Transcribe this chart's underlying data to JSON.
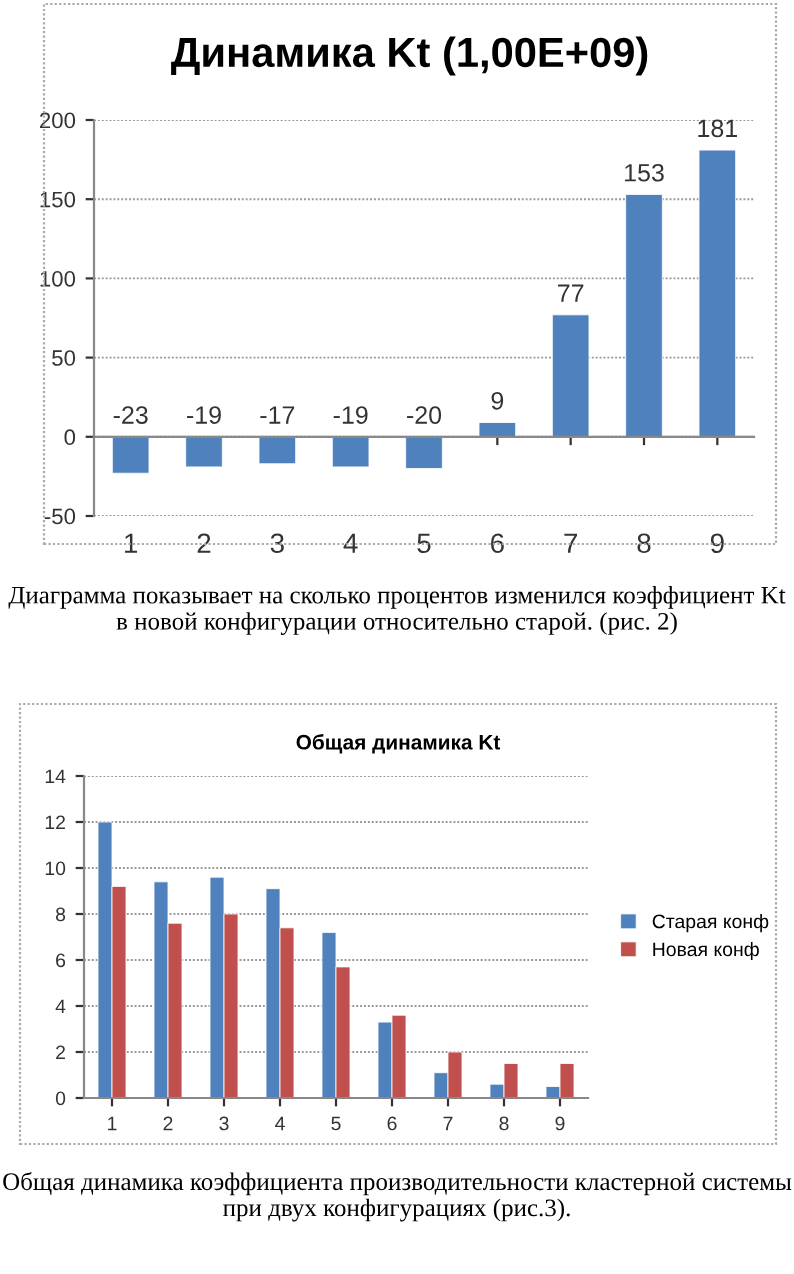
{
  "chart_data": [
    {
      "type": "bar",
      "title": "Динамика Kt (1,00E+09)",
      "categories": [
        "1",
        "2",
        "3",
        "4",
        "5",
        "6",
        "7",
        "8",
        "9"
      ],
      "values": [
        -23,
        -19,
        -17,
        -19,
        -20,
        9,
        77,
        153,
        181
      ],
      "color": "#4f81bd",
      "data_labels": true,
      "ylim": [
        -50,
        200
      ],
      "yticks": [
        -50,
        0,
        50,
        100,
        150,
        200
      ],
      "grid": "y",
      "legend": false,
      "annotations": [
        "Диаграмма показывает на сколько процентов изменился коэффициент Kt в новой конфигурации относительно старой. (рис. 2)"
      ]
    },
    {
      "type": "bar",
      "title": "Общая динамика Kt",
      "categories": [
        "1",
        "2",
        "3",
        "4",
        "5",
        "6",
        "7",
        "8",
        "9"
      ],
      "series": [
        {
          "name": "Старая конф",
          "color": "#4f81bd",
          "values": [
            12,
            9.4,
            9.6,
            9.1,
            7.2,
            3.3,
            1.1,
            0.6,
            0.5
          ]
        },
        {
          "name": "Новая конф",
          "color": "#c0504d",
          "values": [
            9.2,
            7.6,
            8.0,
            7.4,
            5.7,
            3.6,
            2.0,
            1.5,
            1.5
          ]
        }
      ],
      "ylim": [
        0,
        14
      ],
      "yticks": [
        0,
        2,
        4,
        6,
        8,
        10,
        12,
        14
      ],
      "grid": "y",
      "legend": "right",
      "annotations": [
        "Общая динамика коэффициента производительности кластерной системы при двух конфигурациях (рис.3)."
      ]
    }
  ]
}
